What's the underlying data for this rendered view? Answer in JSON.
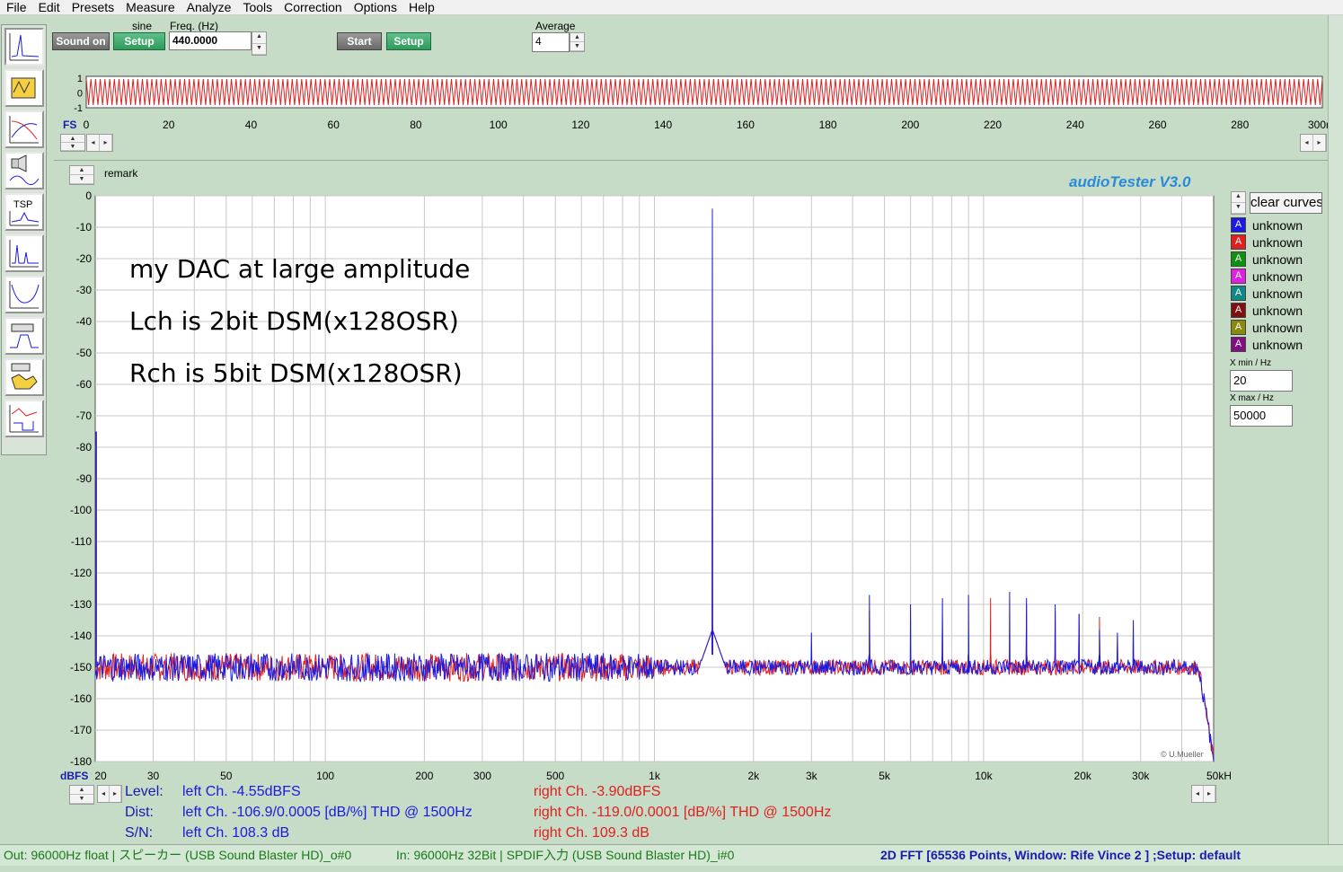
{
  "menu": [
    "File",
    "Edit",
    "Presets",
    "Measure",
    "Analyze",
    "Tools",
    "Correction",
    "Options",
    "Help"
  ],
  "generator": {
    "sound_on_label": "Sound on",
    "waveform_label": "sine",
    "setup_label": "Setup",
    "freq_label": "Freq. (Hz)",
    "freq_value": "440.0000"
  },
  "analyzer": {
    "start_label": "Start",
    "setup_label": "Setup",
    "average_label": "Average",
    "average_value": "4"
  },
  "scope": {
    "y_ticks": [
      "1",
      "0",
      "-1"
    ],
    "fs_label": "FS",
    "x_ticks": [
      "0",
      "20",
      "40",
      "60",
      "80",
      "100",
      "120",
      "140",
      "160",
      "180",
      "200",
      "220",
      "240",
      "260",
      "280",
      "300ms"
    ],
    "x_values": [
      0,
      20,
      40,
      60,
      80,
      100,
      120,
      140,
      160,
      180,
      200,
      220,
      240,
      260,
      280,
      300
    ]
  },
  "remark_label": "remark",
  "brand": "audioTester  V3.0",
  "notes": [
    "my DAC at large amplitude",
    "Lch is 2bit DSM(x128OSR)",
    "Rch is 5bit DSM(x128OSR)"
  ],
  "copyright": "© U.Mueller",
  "clear_curves_label": "clear curves",
  "legend": [
    {
      "letter": "A",
      "label": "unknown",
      "color": "#1a1ae0"
    },
    {
      "letter": "A",
      "label": "unknown",
      "color": "#e02020"
    },
    {
      "letter": "A",
      "label": "unknown",
      "color": "#109010"
    },
    {
      "letter": "A",
      "label": "unknown",
      "color": "#e020e0"
    },
    {
      "letter": "A",
      "label": "unknown",
      "color": "#108888"
    },
    {
      "letter": "A",
      "label": "unknown",
      "color": "#801010"
    },
    {
      "letter": "A",
      "label": "unknown",
      "color": "#8a8a10"
    },
    {
      "letter": "A",
      "label": "unknown",
      "color": "#801080"
    }
  ],
  "xmin_label": "X min / Hz",
  "xmin_value": "20",
  "xmax_label": "X max / Hz",
  "xmax_value": "50000",
  "stats": {
    "level_label": "Level:",
    "dist_label": "Dist:",
    "sn_label": "S/N:",
    "left_level": "left Ch. -4.55dBFS",
    "left_dist": "left Ch. -106.9/0.0005 [dB/%] THD @ 1500Hz",
    "left_sn": "left Ch. 108.3 dB",
    "right_level": "right Ch. -3.90dBFS",
    "right_dist": "right Ch. -119.0/0.0001 [dB/%] THD @ 1500Hz",
    "right_sn": "right Ch. 109.3 dB"
  },
  "status": {
    "out": "Out: 96000Hz float  | スピーカー (USB Sound Blaster HD)_o#0",
    "in": "In: 96000Hz 32Bit  | SPDIF入力 (USB Sound Blaster HD)_i#0",
    "fft": "2D FFT [65536 Points, Window: Rife Vince 2 ]  ;Setup:  default"
  },
  "colors": {
    "left": "#1a1ae0",
    "right": "#e02020",
    "info": "#1a1ab0"
  },
  "chart_data": {
    "type": "line",
    "xscale": "log",
    "xlabel": "",
    "ylabel": "dBFS",
    "xlim": [
      20,
      50000
    ],
    "ylim": [
      -180,
      0
    ],
    "x_ticks": [
      20,
      30,
      50,
      100,
      200,
      300,
      500,
      1000,
      2000,
      3000,
      5000,
      10000,
      20000,
      30000,
      50000
    ],
    "x_tick_labels": [
      "20",
      "30",
      "50",
      "100",
      "200",
      "300",
      "500",
      "1k",
      "2k",
      "3k",
      "5k",
      "10k",
      "20k",
      "30k",
      "50kHz"
    ],
    "y_ticks": [
      0,
      -10,
      -20,
      -30,
      -40,
      -50,
      -60,
      -70,
      -80,
      -90,
      -100,
      -110,
      -120,
      -130,
      -140,
      -150,
      -160,
      -170,
      -180
    ],
    "y_tick_labels": [
      "0",
      "-10",
      "-20",
      "-30",
      "-40",
      "-50",
      "-60",
      "-70",
      "-80",
      "-90",
      "-100",
      "-110",
      "-120",
      "-130",
      "-140",
      "-150",
      "-160",
      "-170",
      "-180"
    ],
    "grid": true,
    "series": [
      {
        "color": "#1a1ae0",
        "fundamental": {
          "x": 1500,
          "y": -4.5
        },
        "noise_floor": -150,
        "harmonics": [
          {
            "x": 3000,
            "y": -139
          },
          {
            "x": 4500,
            "y": -127
          },
          {
            "x": 6000,
            "y": -130
          },
          {
            "x": 7500,
            "y": -128
          },
          {
            "x": 9000,
            "y": -127
          },
          {
            "x": 12000,
            "y": -126
          },
          {
            "x": 13500,
            "y": -128
          },
          {
            "x": 16500,
            "y": -130
          },
          {
            "x": 19500,
            "y": -133
          },
          {
            "x": 22500,
            "y": -138
          },
          {
            "x": 25500,
            "y": -139
          },
          {
            "x": 28500,
            "y": -135
          }
        ]
      },
      {
        "color": "#e02020",
        "fundamental": {
          "x": 1500,
          "y": -4
        },
        "noise_floor": -150,
        "harmonics": [
          {
            "x": 4500,
            "y": -132
          },
          {
            "x": 7500,
            "y": -135
          },
          {
            "x": 10500,
            "y": -128
          },
          {
            "x": 13500,
            "y": -130
          },
          {
            "x": 16500,
            "y": -132
          },
          {
            "x": 19500,
            "y": -133
          },
          {
            "x": 22500,
            "y": -134
          }
        ]
      }
    ]
  }
}
